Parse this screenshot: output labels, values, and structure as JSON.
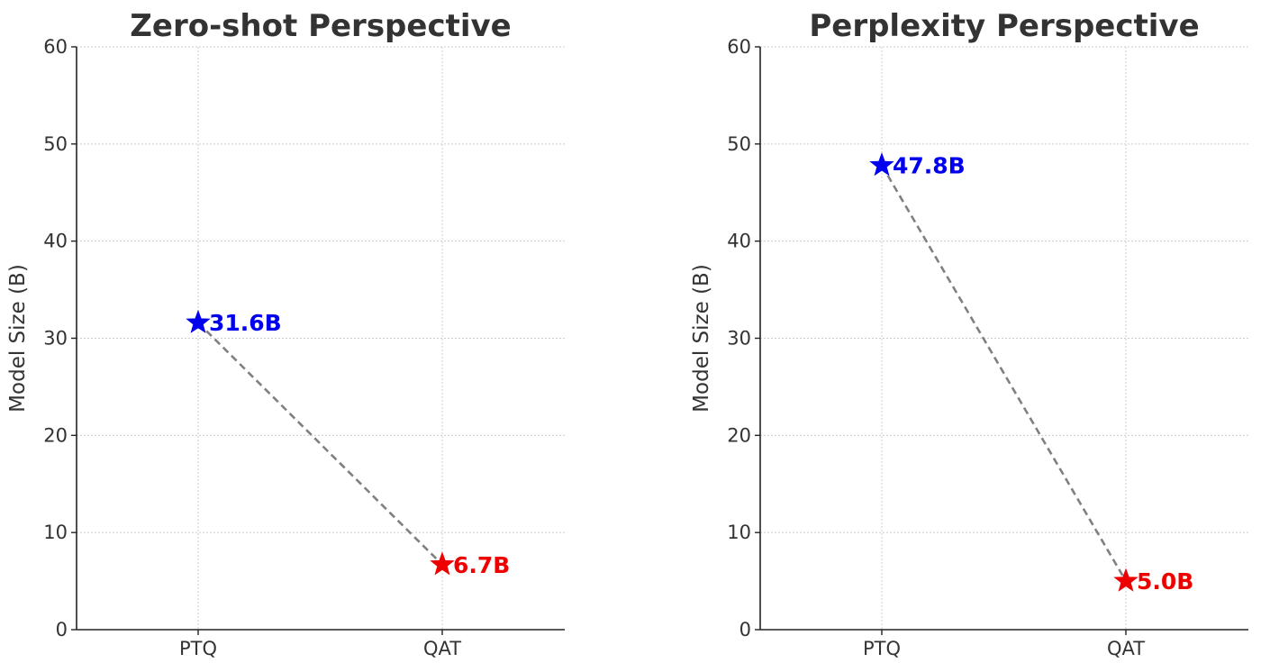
{
  "chart_data": [
    {
      "type": "line",
      "title": "Zero-shot Perspective",
      "xlabel": "",
      "ylabel": "Model Size (B)",
      "categories": [
        "PTQ",
        "QAT"
      ],
      "ylim": [
        0,
        60
      ],
      "yticks": [
        "0",
        "10",
        "20",
        "30",
        "40",
        "50",
        "60"
      ],
      "grid": true,
      "points": [
        {
          "category": "PTQ",
          "value": 31.6,
          "label": "31.6B",
          "color": "#0000ee",
          "marker": "star-icon"
        },
        {
          "category": "QAT",
          "value": 6.7,
          "label": "6.7B",
          "color": "#ee0000",
          "marker": "star-icon"
        }
      ],
      "connector_color": "#808080"
    },
    {
      "type": "line",
      "title": "Perplexity Perspective",
      "xlabel": "",
      "ylabel": "Model Size (B)",
      "categories": [
        "PTQ",
        "QAT"
      ],
      "ylim": [
        0,
        60
      ],
      "yticks": [
        "0",
        "10",
        "20",
        "30",
        "40",
        "50",
        "60"
      ],
      "grid": true,
      "points": [
        {
          "category": "PTQ",
          "value": 47.8,
          "label": "47.8B",
          "color": "#0000ee",
          "marker": "star-icon"
        },
        {
          "category": "QAT",
          "value": 5.0,
          "label": "5.0B",
          "color": "#ee0000",
          "marker": "star-icon"
        }
      ],
      "connector_color": "#808080"
    }
  ]
}
